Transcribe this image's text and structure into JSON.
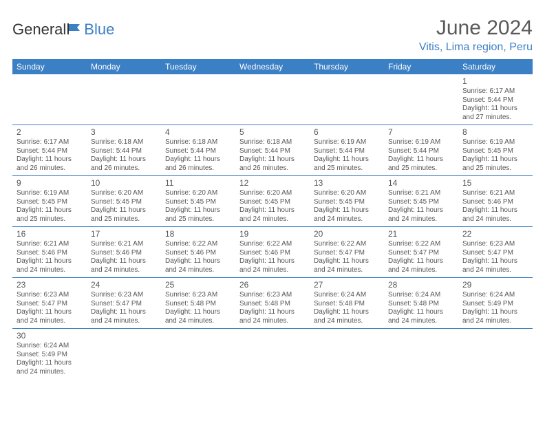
{
  "logo": {
    "part1": "General",
    "part2": "Blue"
  },
  "header": {
    "month_title": "June 2024",
    "location": "Vitis, Lima region, Peru"
  },
  "colors": {
    "header_bg": "#3b7fc4",
    "header_text": "#ffffff",
    "border": "#3b7fc4",
    "text": "#555555",
    "logo_blue": "#3b7fc4"
  },
  "calendar": {
    "day_headers": [
      "Sunday",
      "Monday",
      "Tuesday",
      "Wednesday",
      "Thursday",
      "Friday",
      "Saturday"
    ],
    "weeks": [
      [
        null,
        null,
        null,
        null,
        null,
        null,
        {
          "n": "1",
          "sr": "Sunrise: 6:17 AM",
          "ss": "Sunset: 5:44 PM",
          "d1": "Daylight: 11 hours",
          "d2": "and 27 minutes."
        }
      ],
      [
        {
          "n": "2",
          "sr": "Sunrise: 6:17 AM",
          "ss": "Sunset: 5:44 PM",
          "d1": "Daylight: 11 hours",
          "d2": "and 26 minutes."
        },
        {
          "n": "3",
          "sr": "Sunrise: 6:18 AM",
          "ss": "Sunset: 5:44 PM",
          "d1": "Daylight: 11 hours",
          "d2": "and 26 minutes."
        },
        {
          "n": "4",
          "sr": "Sunrise: 6:18 AM",
          "ss": "Sunset: 5:44 PM",
          "d1": "Daylight: 11 hours",
          "d2": "and 26 minutes."
        },
        {
          "n": "5",
          "sr": "Sunrise: 6:18 AM",
          "ss": "Sunset: 5:44 PM",
          "d1": "Daylight: 11 hours",
          "d2": "and 26 minutes."
        },
        {
          "n": "6",
          "sr": "Sunrise: 6:19 AM",
          "ss": "Sunset: 5:44 PM",
          "d1": "Daylight: 11 hours",
          "d2": "and 25 minutes."
        },
        {
          "n": "7",
          "sr": "Sunrise: 6:19 AM",
          "ss": "Sunset: 5:44 PM",
          "d1": "Daylight: 11 hours",
          "d2": "and 25 minutes."
        },
        {
          "n": "8",
          "sr": "Sunrise: 6:19 AM",
          "ss": "Sunset: 5:45 PM",
          "d1": "Daylight: 11 hours",
          "d2": "and 25 minutes."
        }
      ],
      [
        {
          "n": "9",
          "sr": "Sunrise: 6:19 AM",
          "ss": "Sunset: 5:45 PM",
          "d1": "Daylight: 11 hours",
          "d2": "and 25 minutes."
        },
        {
          "n": "10",
          "sr": "Sunrise: 6:20 AM",
          "ss": "Sunset: 5:45 PM",
          "d1": "Daylight: 11 hours",
          "d2": "and 25 minutes."
        },
        {
          "n": "11",
          "sr": "Sunrise: 6:20 AM",
          "ss": "Sunset: 5:45 PM",
          "d1": "Daylight: 11 hours",
          "d2": "and 25 minutes."
        },
        {
          "n": "12",
          "sr": "Sunrise: 6:20 AM",
          "ss": "Sunset: 5:45 PM",
          "d1": "Daylight: 11 hours",
          "d2": "and 24 minutes."
        },
        {
          "n": "13",
          "sr": "Sunrise: 6:20 AM",
          "ss": "Sunset: 5:45 PM",
          "d1": "Daylight: 11 hours",
          "d2": "and 24 minutes."
        },
        {
          "n": "14",
          "sr": "Sunrise: 6:21 AM",
          "ss": "Sunset: 5:45 PM",
          "d1": "Daylight: 11 hours",
          "d2": "and 24 minutes."
        },
        {
          "n": "15",
          "sr": "Sunrise: 6:21 AM",
          "ss": "Sunset: 5:46 PM",
          "d1": "Daylight: 11 hours",
          "d2": "and 24 minutes."
        }
      ],
      [
        {
          "n": "16",
          "sr": "Sunrise: 6:21 AM",
          "ss": "Sunset: 5:46 PM",
          "d1": "Daylight: 11 hours",
          "d2": "and 24 minutes."
        },
        {
          "n": "17",
          "sr": "Sunrise: 6:21 AM",
          "ss": "Sunset: 5:46 PM",
          "d1": "Daylight: 11 hours",
          "d2": "and 24 minutes."
        },
        {
          "n": "18",
          "sr": "Sunrise: 6:22 AM",
          "ss": "Sunset: 5:46 PM",
          "d1": "Daylight: 11 hours",
          "d2": "and 24 minutes."
        },
        {
          "n": "19",
          "sr": "Sunrise: 6:22 AM",
          "ss": "Sunset: 5:46 PM",
          "d1": "Daylight: 11 hours",
          "d2": "and 24 minutes."
        },
        {
          "n": "20",
          "sr": "Sunrise: 6:22 AM",
          "ss": "Sunset: 5:47 PM",
          "d1": "Daylight: 11 hours",
          "d2": "and 24 minutes."
        },
        {
          "n": "21",
          "sr": "Sunrise: 6:22 AM",
          "ss": "Sunset: 5:47 PM",
          "d1": "Daylight: 11 hours",
          "d2": "and 24 minutes."
        },
        {
          "n": "22",
          "sr": "Sunrise: 6:23 AM",
          "ss": "Sunset: 5:47 PM",
          "d1": "Daylight: 11 hours",
          "d2": "and 24 minutes."
        }
      ],
      [
        {
          "n": "23",
          "sr": "Sunrise: 6:23 AM",
          "ss": "Sunset: 5:47 PM",
          "d1": "Daylight: 11 hours",
          "d2": "and 24 minutes."
        },
        {
          "n": "24",
          "sr": "Sunrise: 6:23 AM",
          "ss": "Sunset: 5:47 PM",
          "d1": "Daylight: 11 hours",
          "d2": "and 24 minutes."
        },
        {
          "n": "25",
          "sr": "Sunrise: 6:23 AM",
          "ss": "Sunset: 5:48 PM",
          "d1": "Daylight: 11 hours",
          "d2": "and 24 minutes."
        },
        {
          "n": "26",
          "sr": "Sunrise: 6:23 AM",
          "ss": "Sunset: 5:48 PM",
          "d1": "Daylight: 11 hours",
          "d2": "and 24 minutes."
        },
        {
          "n": "27",
          "sr": "Sunrise: 6:24 AM",
          "ss": "Sunset: 5:48 PM",
          "d1": "Daylight: 11 hours",
          "d2": "and 24 minutes."
        },
        {
          "n": "28",
          "sr": "Sunrise: 6:24 AM",
          "ss": "Sunset: 5:48 PM",
          "d1": "Daylight: 11 hours",
          "d2": "and 24 minutes."
        },
        {
          "n": "29",
          "sr": "Sunrise: 6:24 AM",
          "ss": "Sunset: 5:49 PM",
          "d1": "Daylight: 11 hours",
          "d2": "and 24 minutes."
        }
      ],
      [
        {
          "n": "30",
          "sr": "Sunrise: 6:24 AM",
          "ss": "Sunset: 5:49 PM",
          "d1": "Daylight: 11 hours",
          "d2": "and 24 minutes."
        },
        null,
        null,
        null,
        null,
        null,
        null
      ]
    ]
  }
}
